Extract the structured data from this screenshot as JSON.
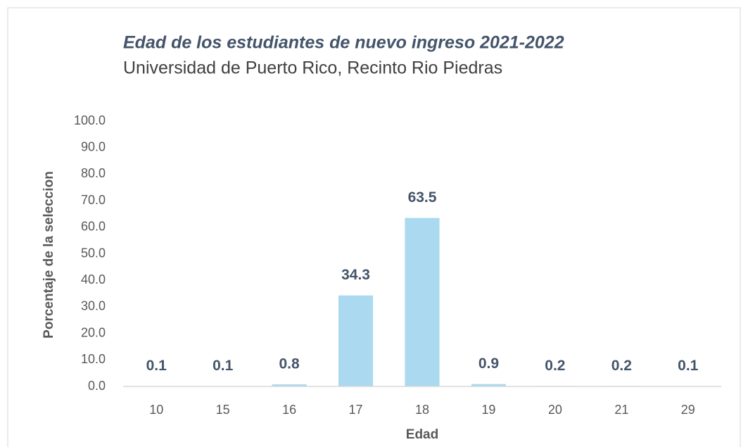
{
  "chart_data": {
    "type": "bar",
    "title": "Edad de los estudiantes de nuevo ingreso 2021-2022",
    "subtitle": "Universidad de Puerto Rico, Recinto Rio Piedras",
    "xlabel": "Edad",
    "ylabel": "Porcentaje de la seleccion",
    "categories": [
      "10",
      "15",
      "16",
      "17",
      "18",
      "19",
      "20",
      "21",
      "29"
    ],
    "values": [
      0.1,
      0.1,
      0.8,
      34.3,
      63.5,
      0.9,
      0.2,
      0.2,
      0.1
    ],
    "color": "#abd9f0",
    "ylim": [
      0,
      100
    ],
    "yticks": [
      {
        "value": 0,
        "label": "0.0"
      },
      {
        "value": 10,
        "label": "10.0"
      },
      {
        "value": 20,
        "label": "20.0"
      },
      {
        "value": 30,
        "label": "30.0"
      },
      {
        "value": 40,
        "label": "40.0"
      },
      {
        "value": 50,
        "label": "50.0"
      },
      {
        "value": 60,
        "label": "60.0"
      },
      {
        "value": 70,
        "label": "70.0"
      },
      {
        "value": 80,
        "label": "80.0"
      },
      {
        "value": 90,
        "label": "90.0"
      },
      {
        "value": 100,
        "label": "100.0"
      }
    ],
    "grid": false
  }
}
